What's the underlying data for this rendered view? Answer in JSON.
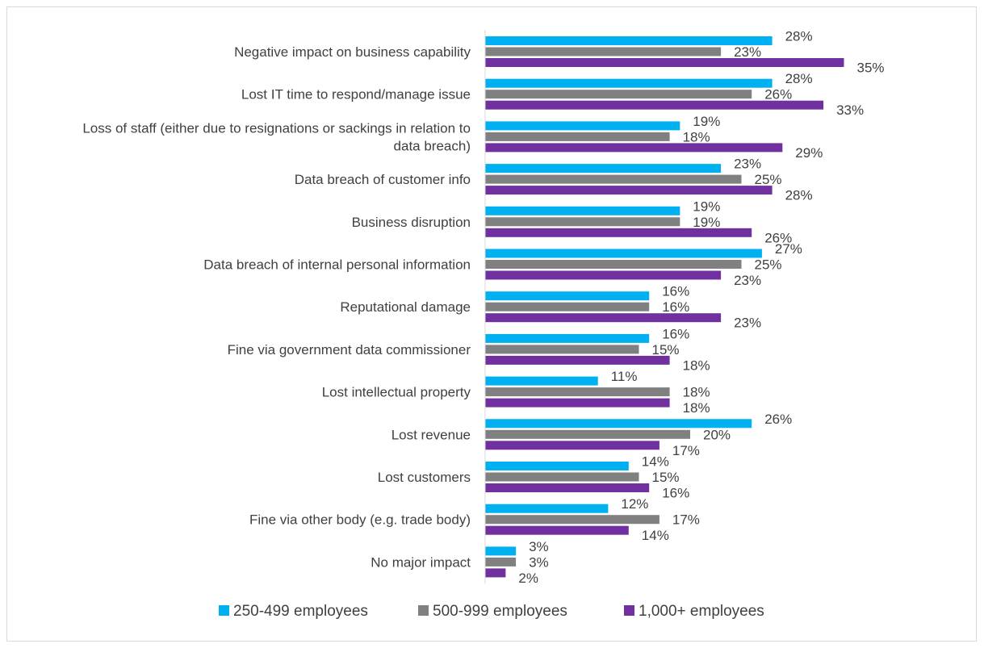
{
  "chart_data": {
    "type": "bar",
    "orientation": "horizontal",
    "title": "",
    "xlabel": "",
    "ylabel": "",
    "xlim": [
      0,
      40
    ],
    "grid": false,
    "legend_position": "bottom",
    "categories": [
      "Negative impact on business capability",
      "Lost IT time to respond/manage issue",
      "Loss of staff (either due to resignations or sackings in relation to data breach)",
      "Data breach of customer info",
      "Business disruption",
      "Data breach of internal personal information",
      "Reputational damage",
      "Fine via government data commissioner",
      "Lost intellectual property",
      "Lost revenue",
      "Lost customers",
      "Fine via other body (e.g. trade body)",
      "No major impact"
    ],
    "category_lines": [
      [
        "Negative impact on business capability"
      ],
      [
        "Lost IT time to respond/manage issue"
      ],
      [
        "Loss of staff (either due to resignations or sackings in relation to",
        "data breach)"
      ],
      [
        "Data breach of customer info"
      ],
      [
        "Business disruption"
      ],
      [
        "Data breach of internal personal information"
      ],
      [
        "Reputational damage"
      ],
      [
        "Fine via government data commissioner"
      ],
      [
        "Lost intellectual property"
      ],
      [
        "Lost revenue"
      ],
      [
        "Lost customers"
      ],
      [
        "Fine via other body (e.g. trade body)"
      ],
      [
        "No major impact"
      ]
    ],
    "series": [
      {
        "name": "250-499 employees",
        "color": "#00b0f0",
        "values": [
          28,
          28,
          19,
          23,
          19,
          27,
          16,
          16,
          11,
          26,
          14,
          12,
          3
        ]
      },
      {
        "name": "500-999 employees",
        "color": "#808080",
        "values": [
          23,
          26,
          18,
          25,
          19,
          25,
          16,
          15,
          18,
          20,
          15,
          17,
          3
        ]
      },
      {
        "name": "1,000+ employees",
        "color": "#7030a0",
        "values": [
          35,
          33,
          29,
          28,
          26,
          23,
          23,
          18,
          18,
          17,
          16,
          14,
          2
        ]
      }
    ],
    "value_suffix": "%"
  }
}
